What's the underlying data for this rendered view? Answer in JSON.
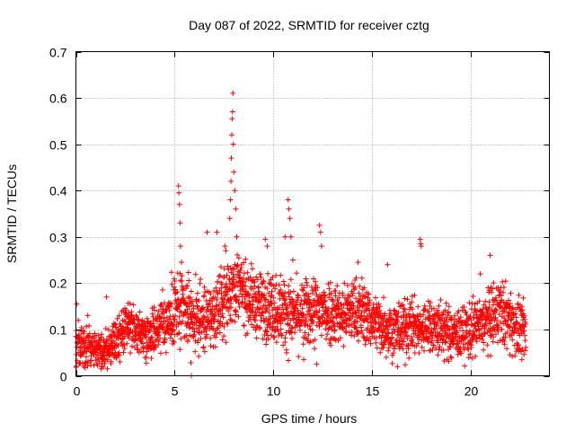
{
  "chart_data": {
    "type": "scatter",
    "title": "Day 087 of 2022, SRMTID for receiver cztg",
    "xlabel": "GPS time / hours",
    "ylabel": "SRMTID / TECUs",
    "xlim": [
      0,
      24
    ],
    "ylim": [
      0,
      0.7
    ],
    "xticks": [
      0,
      5,
      10,
      15,
      20
    ],
    "yticks": [
      0,
      0.1,
      0.2,
      0.3,
      0.4,
      0.5,
      0.6,
      0.7
    ],
    "xtick_labels": [
      "0",
      "5",
      "10",
      "15",
      "20"
    ],
    "ytick_labels": [
      "0",
      "0.1",
      "0.2",
      "0.3",
      "0.4",
      "0.5",
      "0.6",
      "0.7"
    ],
    "grid": true,
    "marker": "+",
    "series_color": "#ff0000",
    "x_data_range": [
      0,
      22.8
    ],
    "envelope": {
      "x": [
        0,
        0.5,
        1.0,
        1.5,
        2.0,
        2.5,
        3.0,
        3.5,
        4.0,
        4.5,
        5.0,
        5.5,
        6.0,
        6.5,
        7.0,
        7.5,
        8.0,
        8.5,
        9.0,
        9.5,
        10.0,
        10.5,
        11.0,
        11.5,
        12.0,
        12.5,
        13.0,
        13.5,
        14.0,
        14.5,
        15.0,
        15.5,
        16.0,
        16.5,
        17.0,
        17.5,
        18.0,
        18.5,
        19.0,
        19.5,
        20.0,
        20.5,
        21.0,
        21.5,
        22.0,
        22.5,
        22.8
      ],
      "mean": [
        0.07,
        0.065,
        0.06,
        0.055,
        0.07,
        0.1,
        0.1,
        0.09,
        0.1,
        0.12,
        0.14,
        0.14,
        0.12,
        0.12,
        0.13,
        0.16,
        0.2,
        0.18,
        0.16,
        0.15,
        0.15,
        0.14,
        0.13,
        0.13,
        0.14,
        0.14,
        0.14,
        0.13,
        0.14,
        0.14,
        0.12,
        0.11,
        0.1,
        0.1,
        0.11,
        0.1,
        0.11,
        0.1,
        0.09,
        0.09,
        0.1,
        0.11,
        0.12,
        0.14,
        0.12,
        0.1,
        0.09
      ],
      "spread": [
        0.035,
        0.03,
        0.025,
        0.025,
        0.035,
        0.035,
        0.03,
        0.03,
        0.035,
        0.04,
        0.05,
        0.05,
        0.045,
        0.045,
        0.045,
        0.05,
        0.05,
        0.045,
        0.045,
        0.045,
        0.05,
        0.05,
        0.045,
        0.045,
        0.05,
        0.05,
        0.045,
        0.045,
        0.045,
        0.045,
        0.04,
        0.04,
        0.04,
        0.04,
        0.04,
        0.035,
        0.04,
        0.04,
        0.035,
        0.035,
        0.04,
        0.04,
        0.045,
        0.045,
        0.045,
        0.04,
        0.035
      ]
    },
    "notable_points": [
      {
        "x": 0.05,
        "y": 0.155
      },
      {
        "x": 1.55,
        "y": 0.17
      },
      {
        "x": 1.3,
        "y": 0.02
      },
      {
        "x": 5.2,
        "y": 0.41
      },
      {
        "x": 5.22,
        "y": 0.395
      },
      {
        "x": 5.25,
        "y": 0.37
      },
      {
        "x": 5.28,
        "y": 0.33
      },
      {
        "x": 5.3,
        "y": 0.28
      },
      {
        "x": 5.35,
        "y": 0.245
      },
      {
        "x": 5.85,
        "y": 0.0
      },
      {
        "x": 6.65,
        "y": 0.31
      },
      {
        "x": 7.15,
        "y": 0.31
      },
      {
        "x": 7.55,
        "y": 0.28
      },
      {
        "x": 7.6,
        "y": 0.27
      },
      {
        "x": 7.8,
        "y": 0.34
      },
      {
        "x": 7.83,
        "y": 0.38
      },
      {
        "x": 7.86,
        "y": 0.42
      },
      {
        "x": 7.88,
        "y": 0.47
      },
      {
        "x": 7.9,
        "y": 0.52
      },
      {
        "x": 7.92,
        "y": 0.555
      },
      {
        "x": 7.94,
        "y": 0.57
      },
      {
        "x": 7.96,
        "y": 0.61
      },
      {
        "x": 7.98,
        "y": 0.5
      },
      {
        "x": 8.0,
        "y": 0.44
      },
      {
        "x": 8.05,
        "y": 0.4
      },
      {
        "x": 8.1,
        "y": 0.36
      },
      {
        "x": 8.15,
        "y": 0.3
      },
      {
        "x": 9.6,
        "y": 0.295
      },
      {
        "x": 9.7,
        "y": 0.28
      },
      {
        "x": 10.6,
        "y": 0.3
      },
      {
        "x": 10.75,
        "y": 0.38
      },
      {
        "x": 10.8,
        "y": 0.36
      },
      {
        "x": 10.85,
        "y": 0.34
      },
      {
        "x": 10.9,
        "y": 0.3
      },
      {
        "x": 11.0,
        "y": 0.25
      },
      {
        "x": 12.35,
        "y": 0.325
      },
      {
        "x": 12.4,
        "y": 0.31
      },
      {
        "x": 12.45,
        "y": 0.28
      },
      {
        "x": 11.55,
        "y": 0.035
      },
      {
        "x": 12.2,
        "y": 0.025
      },
      {
        "x": 14.3,
        "y": 0.245
      },
      {
        "x": 15.8,
        "y": 0.24
      },
      {
        "x": 16.3,
        "y": 0.02
      },
      {
        "x": 17.45,
        "y": 0.295
      },
      {
        "x": 17.48,
        "y": 0.285
      },
      {
        "x": 17.5,
        "y": 0.28
      },
      {
        "x": 20.5,
        "y": 0.22
      },
      {
        "x": 21.0,
        "y": 0.26
      },
      {
        "x": 21.4,
        "y": 0.19
      },
      {
        "x": 22.6,
        "y": 0.035
      }
    ]
  }
}
